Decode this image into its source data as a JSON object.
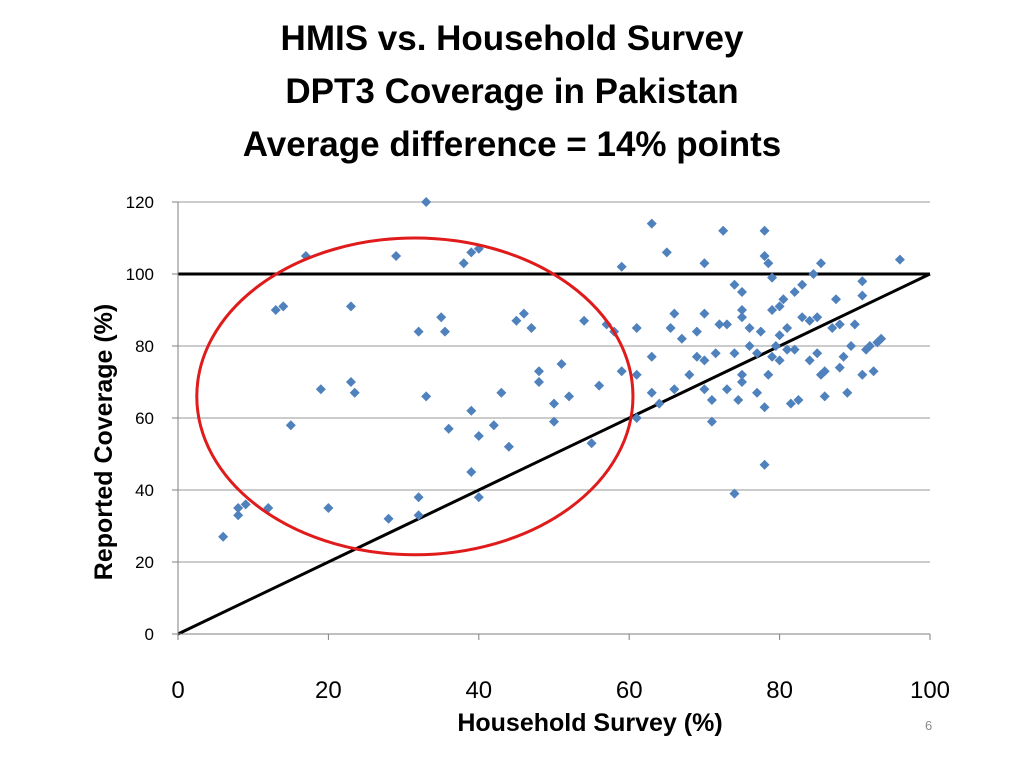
{
  "slide": {
    "title_lines": [
      "HMIS vs. Household Survey",
      "DPT3 Coverage in Pakistan",
      "Average difference = 14% points"
    ],
    "page_number": "6"
  },
  "colors": {
    "points": "#4f81bd",
    "ellipse": "#e01b1b",
    "reference_lines": "#000000",
    "grid": "#9a9a9a"
  },
  "chart_data": {
    "type": "scatter",
    "xlabel": "Household Survey (%)",
    "ylabel": "Reported Coverage (%)",
    "xlim": [
      0,
      100
    ],
    "ylim": [
      0,
      120
    ],
    "xticks": [
      0,
      20,
      40,
      60,
      80,
      100
    ],
    "yticks": [
      0,
      20,
      40,
      60,
      80,
      100,
      120
    ],
    "grid": "horizontal",
    "reference_lines": [
      {
        "kind": "horizontal",
        "y": 100
      },
      {
        "kind": "diagonal",
        "from": [
          0,
          0
        ],
        "to": [
          100,
          100
        ]
      }
    ],
    "highlight_ellipse": {
      "center": [
        31.5,
        66
      ],
      "radius_x": 29,
      "radius_y": 44
    },
    "points": [
      [
        6,
        27
      ],
      [
        8,
        33
      ],
      [
        8,
        35
      ],
      [
        9,
        36
      ],
      [
        12,
        35
      ],
      [
        13,
        90
      ],
      [
        14,
        91
      ],
      [
        15,
        58
      ],
      [
        17,
        105
      ],
      [
        19,
        68
      ],
      [
        20,
        35
      ],
      [
        23,
        70
      ],
      [
        23,
        91
      ],
      [
        23.5,
        67
      ],
      [
        28,
        32
      ],
      [
        29,
        105
      ],
      [
        32,
        38
      ],
      [
        32,
        33
      ],
      [
        32,
        84
      ],
      [
        33,
        66
      ],
      [
        33,
        120
      ],
      [
        35,
        88
      ],
      [
        35.5,
        84
      ],
      [
        36,
        57
      ],
      [
        38,
        103
      ],
      [
        39,
        106
      ],
      [
        39,
        62
      ],
      [
        39,
        45
      ],
      [
        40,
        107
      ],
      [
        40,
        55
      ],
      [
        40,
        38
      ],
      [
        42,
        58
      ],
      [
        43,
        67
      ],
      [
        44,
        52
      ],
      [
        45,
        87
      ],
      [
        46,
        89
      ],
      [
        47,
        85
      ],
      [
        48,
        73
      ],
      [
        48,
        70
      ],
      [
        50,
        64
      ],
      [
        50,
        59
      ],
      [
        51,
        75
      ],
      [
        52,
        66
      ],
      [
        54,
        87
      ],
      [
        55,
        53
      ],
      [
        56,
        69
      ],
      [
        57,
        86
      ],
      [
        58,
        84
      ],
      [
        59,
        102
      ],
      [
        59,
        73
      ],
      [
        61,
        85
      ],
      [
        61,
        72
      ],
      [
        61,
        60
      ],
      [
        63,
        114
      ],
      [
        63,
        77
      ],
      [
        63,
        67
      ],
      [
        64,
        64
      ],
      [
        65,
        106
      ],
      [
        65.5,
        85
      ],
      [
        66,
        89
      ],
      [
        66,
        68
      ],
      [
        67,
        82
      ],
      [
        68,
        72
      ],
      [
        69,
        77
      ],
      [
        69,
        84
      ],
      [
        70,
        103
      ],
      [
        70,
        89
      ],
      [
        70,
        76
      ],
      [
        70,
        68
      ],
      [
        71,
        59
      ],
      [
        71,
        65
      ],
      [
        71.5,
        78
      ],
      [
        72,
        86
      ],
      [
        72.5,
        112
      ],
      [
        73,
        68
      ],
      [
        73,
        86
      ],
      [
        74,
        39
      ],
      [
        74,
        97
      ],
      [
        74,
        78
      ],
      [
        74.5,
        65
      ],
      [
        75,
        95
      ],
      [
        75,
        90
      ],
      [
        75,
        88
      ],
      [
        75,
        72
      ],
      [
        75,
        70
      ],
      [
        76,
        80
      ],
      [
        76,
        85
      ],
      [
        77,
        78
      ],
      [
        77,
        67
      ],
      [
        77.5,
        84
      ],
      [
        78,
        112
      ],
      [
        78,
        105
      ],
      [
        78,
        63
      ],
      [
        78,
        47
      ],
      [
        78.5,
        103
      ],
      [
        78.5,
        72
      ],
      [
        79,
        99
      ],
      [
        79,
        90
      ],
      [
        79,
        77
      ],
      [
        79.5,
        80
      ],
      [
        80,
        91
      ],
      [
        80,
        83
      ],
      [
        80,
        76
      ],
      [
        80.5,
        93
      ],
      [
        81,
        85
      ],
      [
        81,
        79
      ],
      [
        81.5,
        64
      ],
      [
        82,
        95
      ],
      [
        82,
        79
      ],
      [
        82.5,
        65
      ],
      [
        83,
        88
      ],
      [
        83,
        97
      ],
      [
        84,
        87
      ],
      [
        84,
        76
      ],
      [
        84.5,
        100
      ],
      [
        85,
        88
      ],
      [
        85,
        78
      ],
      [
        85.5,
        103
      ],
      [
        85.5,
        72
      ],
      [
        86,
        73
      ],
      [
        86,
        66
      ],
      [
        87,
        85
      ],
      [
        87.5,
        93
      ],
      [
        88,
        86
      ],
      [
        88.5,
        77
      ],
      [
        88,
        74
      ],
      [
        89,
        67
      ],
      [
        89.5,
        80
      ],
      [
        90,
        86
      ],
      [
        91,
        98
      ],
      [
        91,
        94
      ],
      [
        91,
        72
      ],
      [
        91.5,
        79
      ],
      [
        92,
        80
      ],
      [
        92.5,
        73
      ],
      [
        93,
        81
      ],
      [
        93.5,
        82
      ],
      [
        96,
        104
      ]
    ]
  }
}
